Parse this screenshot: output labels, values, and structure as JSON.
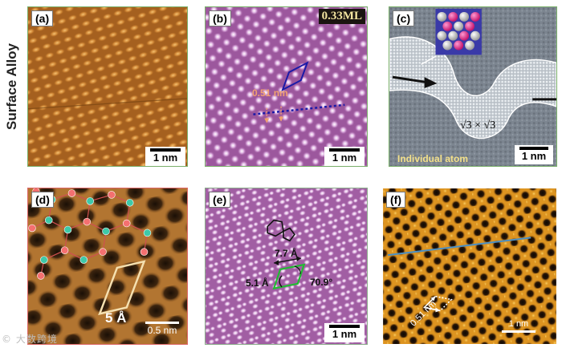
{
  "row_label": "Surface Alloy",
  "panels": {
    "a": {
      "label": "(a)",
      "scale": "1 nm"
    },
    "b": {
      "label": "(b)",
      "scale": "1 nm",
      "coverage": "0.33ML",
      "spacing": "0.51 nm"
    },
    "c": {
      "label": "(c)",
      "scale": "1 nm",
      "superstructure": "√3 × √3",
      "caption": "Individual atom"
    },
    "d": {
      "label": "(d)",
      "scale": "0.5 nm",
      "cell": "5 Å"
    },
    "e": {
      "label": "(e)",
      "scale": "1 nm",
      "length_a": "7.7 Å",
      "length_b": "5.1 Å",
      "angle": "70.9°"
    },
    "f": {
      "label": "(f)",
      "scale": "1 nm",
      "spacing": "0.51 nm"
    }
  },
  "watermark": "大数跨境",
  "colors": {
    "stm_gold": "#c47a2a",
    "stm_pink": "#b070b0",
    "stm_gray": "#7c8590",
    "accent_blue": "#1a1aa8",
    "accent_green": "#22bb33",
    "spot_orange": "#f0a070"
  }
}
